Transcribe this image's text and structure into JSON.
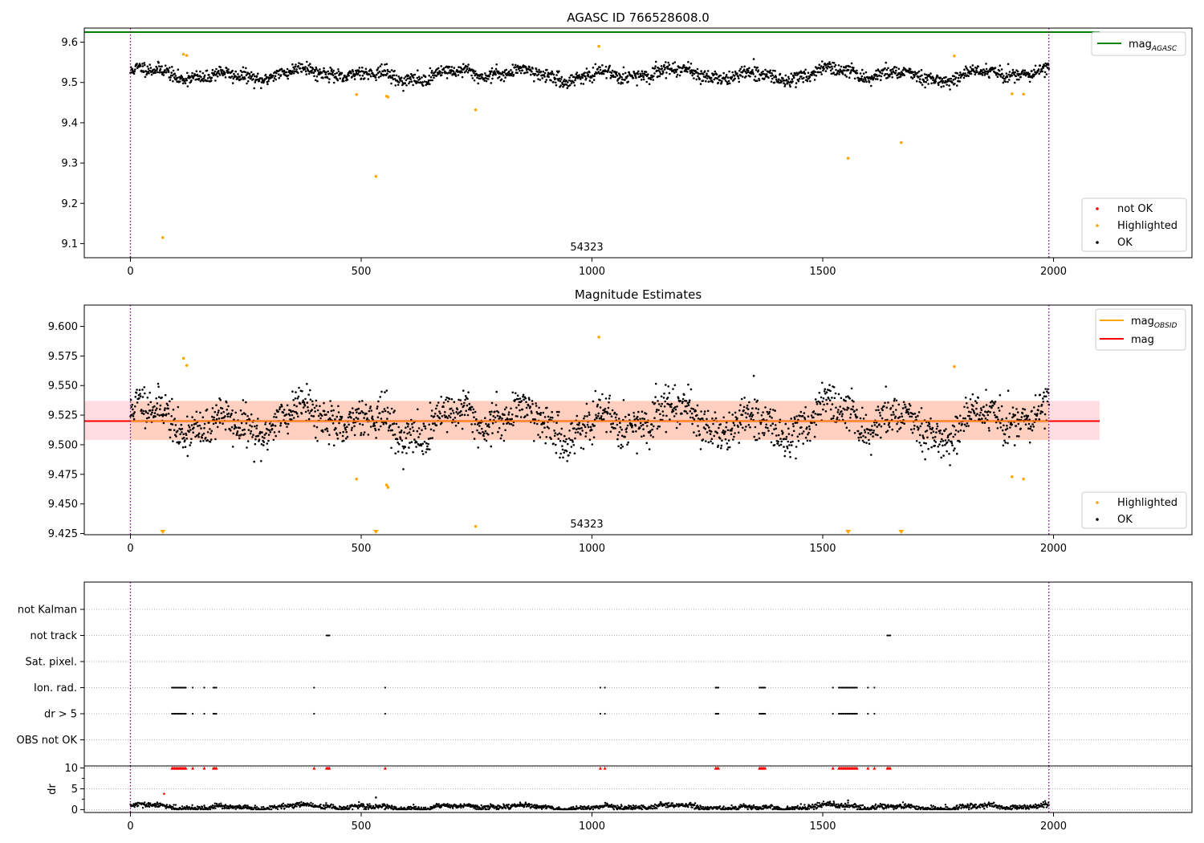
{
  "chart_data": [
    {
      "type": "scatter",
      "title": "AGASC ID 766528608.0",
      "xlim": [
        -100,
        2300
      ],
      "ylim": [
        9.065,
        9.635
      ],
      "xticks": [
        0,
        500,
        1000,
        1500,
        2000
      ],
      "xtick_labels": [
        "0",
        "500",
        "1000",
        "1500",
        "2000"
      ],
      "yticks": [
        9.1,
        9.2,
        9.3,
        9.4,
        9.5,
        9.6
      ],
      "ytick_labels": [
        "9.1",
        "9.2",
        "9.3",
        "9.4",
        "9.5",
        "9.6"
      ],
      "obsid_label": "54323",
      "obsid_label_x": 1000,
      "obs_boundaries": [
        0,
        1990
      ],
      "mag_agasc": 9.625,
      "mag_agasc_span": [
        -100,
        2100
      ],
      "ok_series": {
        "n": 1990,
        "x_range": [
          0,
          1990
        ],
        "mean": 9.52,
        "noise": 0.011
      },
      "highlighted": [
        [
          70,
          9.115
        ],
        [
          115,
          9.57
        ],
        [
          122,
          9.567
        ],
        [
          490,
          9.47
        ],
        [
          532,
          9.267
        ],
        [
          555,
          9.466
        ],
        [
          558,
          9.464
        ],
        [
          748,
          9.432
        ],
        [
          1015,
          9.59
        ],
        [
          1555,
          9.312
        ],
        [
          1670,
          9.351
        ],
        [
          1785,
          9.566
        ],
        [
          1910,
          9.472
        ],
        [
          1935,
          9.471
        ]
      ],
      "legend_top": [
        {
          "label": "mag",
          "sub": "AGASC",
          "color": "#008000"
        }
      ],
      "legend_bottom": [
        {
          "label": "not OK",
          "color": "#ff0000"
        },
        {
          "label": "Highlighted",
          "color": "#ffa500"
        },
        {
          "label": "OK",
          "color": "#000000"
        }
      ]
    },
    {
      "type": "scatter",
      "title": "Magnitude Estimates",
      "xlim": [
        -100,
        2300
      ],
      "ylim": [
        9.424,
        9.618
      ],
      "xticks": [
        0,
        500,
        1000,
        1500,
        2000
      ],
      "xtick_labels": [
        "0",
        "500",
        "1000",
        "1500",
        "2000"
      ],
      "yticks": [
        9.425,
        9.45,
        9.475,
        9.5,
        9.525,
        9.55,
        9.575,
        9.6
      ],
      "ytick_labels": [
        "9.425",
        "9.450",
        "9.475",
        "9.500",
        "9.525",
        "9.550",
        "9.575",
        "9.600"
      ],
      "obsid_label": "54323",
      "obsid_label_x": 1000,
      "obs_boundaries": [
        0,
        1990
      ],
      "mag_line": 9.52,
      "mag_band": [
        9.504,
        9.537
      ],
      "band_span": [
        -100,
        2100
      ],
      "ok_series": {
        "n": 1990,
        "x_range": [
          0,
          1990
        ],
        "mean": 9.52,
        "noise": 0.011
      },
      "highlighted": [
        [
          115,
          9.573
        ],
        [
          122,
          9.567
        ],
        [
          490,
          9.471
        ],
        [
          555,
          9.466
        ],
        [
          558,
          9.464
        ],
        [
          748,
          9.431
        ],
        [
          1015,
          9.591
        ],
        [
          1785,
          9.566
        ],
        [
          1910,
          9.473
        ],
        [
          1935,
          9.471
        ]
      ],
      "below_range": [
        70,
        532,
        1555,
        1670
      ],
      "legend_top": [
        {
          "label": "mag",
          "sub": "OBSID",
          "color": "#ffa500"
        },
        {
          "label": "mag",
          "sub": "",
          "color": "#ff0000"
        }
      ],
      "legend_bottom": [
        {
          "label": "Highlighted",
          "color": "#ffa500"
        },
        {
          "label": "OK",
          "color": "#000000"
        }
      ]
    },
    {
      "type": "scatter",
      "title": "",
      "xlim": [
        -100,
        2300
      ],
      "obs_boundaries": [
        0,
        1990
      ],
      "categories": [
        "not Kalman",
        "not track",
        "Sat. pixel.",
        "Ion. rad.",
        "dr > 5",
        "OBS not OK"
      ],
      "flags": {
        "not track": [
          [
            425,
            432
          ],
          [
            1640,
            1648
          ]
        ],
        "Ion. rad.": [
          [
            90,
            120
          ],
          [
            135,
            135
          ],
          [
            160,
            160
          ],
          [
            180,
            186
          ],
          [
            398,
            398
          ],
          [
            552,
            552
          ],
          [
            1018,
            1018
          ],
          [
            1028,
            1028
          ],
          [
            1268,
            1276
          ],
          [
            1363,
            1376
          ],
          [
            1522,
            1522
          ],
          [
            1535,
            1575
          ],
          [
            1598,
            1598
          ],
          [
            1612,
            1612
          ]
        ],
        "dr > 5": [
          [
            90,
            120
          ],
          [
            135,
            135
          ],
          [
            160,
            160
          ],
          [
            180,
            186
          ],
          [
            398,
            398
          ],
          [
            552,
            552
          ],
          [
            1018,
            1018
          ],
          [
            1028,
            1028
          ],
          [
            1268,
            1276
          ],
          [
            1363,
            1376
          ],
          [
            1522,
            1522
          ],
          [
            1535,
            1575
          ],
          [
            1598,
            1598
          ],
          [
            1612,
            1612
          ]
        ]
      }
    },
    {
      "type": "scatter",
      "xlim": [
        -100,
        2300
      ],
      "ylim": [
        -0.7,
        10.5
      ],
      "ylabel": "dr",
      "yticks": [
        0,
        5,
        10
      ],
      "ytick_labels": [
        "0",
        "5",
        "10"
      ],
      "xticks": [
        0,
        500,
        1000,
        1500,
        2000
      ],
      "xtick_labels": [
        "0",
        "500",
        "1000",
        "1500",
        "2000"
      ],
      "obs_boundaries": [
        0,
        1990
      ],
      "ok_series": {
        "n": 1990,
        "x_range": [
          0,
          1990
        ],
        "mean": 0.6,
        "noise": 0.4
      },
      "clipped_x": [
        [
          90,
          120
        ],
        [
          135,
          135
        ],
        [
          160,
          160
        ],
        [
          180,
          186
        ],
        [
          398,
          398
        ],
        [
          425,
          432
        ],
        [
          552,
          552
        ],
        [
          1018,
          1018
        ],
        [
          1028,
          1028
        ],
        [
          1268,
          1276
        ],
        [
          1363,
          1376
        ],
        [
          1522,
          1522
        ],
        [
          1535,
          1575
        ],
        [
          1598,
          1598
        ],
        [
          1612,
          1612
        ],
        [
          1640,
          1648
        ]
      ],
      "clipped_value": 10,
      "extra_points": [
        [
          73,
          3.8
        ],
        [
          532,
          2.9
        ],
        [
          1555,
          2.2
        ]
      ]
    }
  ]
}
